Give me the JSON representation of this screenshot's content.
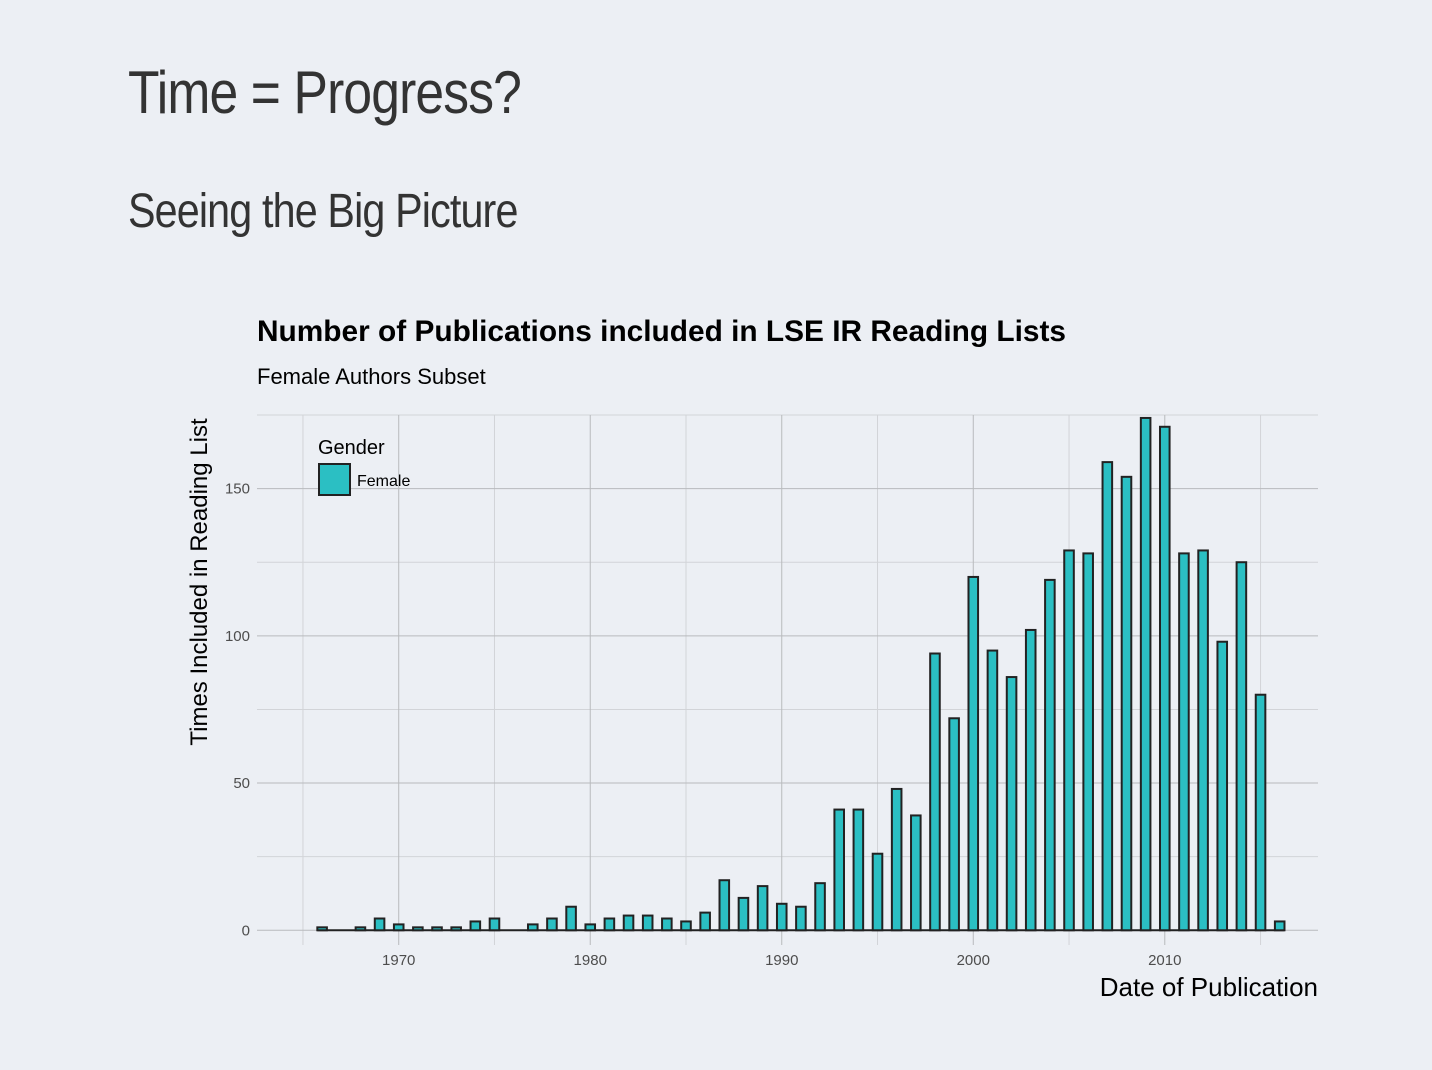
{
  "slide": {
    "title": "Time = Progress?",
    "subtitle": "Seeing the Big Picture"
  },
  "chart_data": {
    "type": "bar",
    "title": "Number of Publications included in LSE IR Reading Lists",
    "subtitle": "Female Authors Subset",
    "xlabel": "Date of Publication",
    "ylabel": "Times Included in Reading List",
    "xlim": [
      1962.6,
      2018.0
    ],
    "ylim": [
      -5,
      175
    ],
    "xticks": [
      1970,
      1980,
      1990,
      2000,
      2010
    ],
    "yticks": [
      0,
      50,
      100,
      150
    ],
    "grid": true,
    "legend": {
      "title": "Gender",
      "position": "top-left",
      "entries": [
        {
          "name": "Female",
          "color": "#2bbfc3"
        }
      ]
    },
    "series": [
      {
        "name": "Female",
        "color": "#2bbfc3",
        "x": [
          1966,
          1968,
          1969,
          1970,
          1971,
          1972,
          1973,
          1974,
          1975,
          1977,
          1978,
          1979,
          1980,
          1981,
          1982,
          1983,
          1984,
          1985,
          1986,
          1987,
          1988,
          1989,
          1990,
          1991,
          1992,
          1993,
          1994,
          1995,
          1996,
          1997,
          1998,
          1999,
          2000,
          2001,
          2002,
          2003,
          2004,
          2005,
          2006,
          2007,
          2008,
          2009,
          2010,
          2011,
          2012,
          2013,
          2014,
          2015,
          2016
        ],
        "values": [
          1,
          1,
          4,
          2,
          1,
          1,
          1,
          3,
          4,
          2,
          4,
          8,
          2,
          4,
          5,
          5,
          4,
          3,
          6,
          17,
          11,
          15,
          9,
          8,
          16,
          41,
          41,
          26,
          48,
          39,
          94,
          72,
          120,
          95,
          86,
          102,
          119,
          129,
          128,
          159,
          154,
          174,
          171,
          128,
          129,
          98,
          125,
          80,
          3
        ]
      }
    ]
  }
}
